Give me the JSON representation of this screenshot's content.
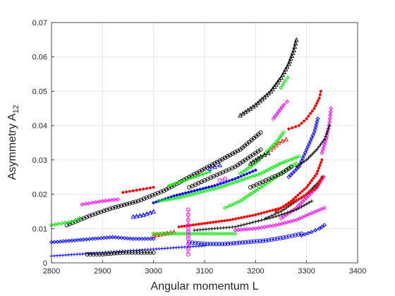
{
  "chart_data": {
    "type": "scatter",
    "title": "",
    "xlabel": "Angular momentum L",
    "ylabel": "Asymmetry A",
    "ylabel_subscript": "12",
    "xlim": [
      2800,
      3400
    ],
    "ylim": [
      0,
      0.07
    ],
    "xticks": [
      "2800",
      "2900",
      "3000",
      "3100",
      "3200",
      "3300",
      "3400"
    ],
    "yticks": [
      "0",
      "0.01",
      "0.02",
      "0.03",
      "0.04",
      "0.05",
      "0.06",
      "0.07"
    ],
    "grid": true,
    "legend": "none",
    "colors": {
      "black": "#000000",
      "red": "#ff0000",
      "green": "#00ee00",
      "blue": "#0000ff",
      "magenta": "#ff00ff"
    },
    "series": [
      {
        "color": "black",
        "marker": "triangle",
        "x": [
          3170,
          3200,
          3230,
          3250,
          3265,
          3275,
          3280
        ],
        "y": [
          0.043,
          0.046,
          0.05,
          0.054,
          0.058,
          0.062,
          0.065
        ]
      },
      {
        "color": "red",
        "marker": "dot",
        "x": [
          3265,
          3285,
          3300,
          3315,
          3325,
          3328
        ],
        "y": [
          0.039,
          0.04,
          0.042,
          0.045,
          0.048,
          0.05
        ]
      },
      {
        "color": "magenta",
        "marker": "diamond",
        "x": [
          3235,
          3245,
          3255,
          3262
        ],
        "y": [
          0.042,
          0.044,
          0.046,
          0.047
        ]
      },
      {
        "color": "green",
        "marker": "diamond",
        "x": [
          3250,
          3258,
          3263
        ],
        "y": [
          0.051,
          0.053,
          0.054
        ]
      },
      {
        "color": "blue",
        "marker": "diamond",
        "x": [
          3265,
          3285,
          3300,
          3315,
          3322
        ],
        "y": [
          0.025,
          0.028,
          0.033,
          0.038,
          0.042
        ]
      },
      {
        "color": "magenta",
        "marker": "diamond",
        "x": [
          3330,
          3340,
          3345,
          3348
        ],
        "y": [
          0.032,
          0.037,
          0.041,
          0.045
        ]
      },
      {
        "color": "black",
        "marker": "plus",
        "x": [
          3280,
          3300,
          3320,
          3335,
          3345
        ],
        "y": [
          0.028,
          0.03,
          0.033,
          0.036,
          0.04
        ]
      },
      {
        "color": "red",
        "marker": "triangle",
        "x": [
          3230,
          3245,
          3260
        ],
        "y": [
          0.033,
          0.035,
          0.036
        ]
      },
      {
        "color": "black",
        "marker": "circle",
        "x": [
          2830,
          2880,
          2920,
          2970,
          3020,
          3070,
          3120,
          3170,
          3210
        ],
        "y": [
          0.011,
          0.014,
          0.016,
          0.018,
          0.021,
          0.025,
          0.029,
          0.033,
          0.038
        ]
      },
      {
        "color": "green",
        "marker": "diamond",
        "x": [
          2800,
          2820,
          2840,
          2855
        ],
        "y": [
          0.011,
          0.0115,
          0.012,
          0.013
        ]
      },
      {
        "color": "magenta",
        "marker": "diamond",
        "x": [
          2860,
          2880,
          2900,
          2930
        ],
        "y": [
          0.017,
          0.0175,
          0.018,
          0.0185
        ]
      },
      {
        "color": "red",
        "marker": "dot",
        "x": [
          2940,
          2960,
          2980,
          3000
        ],
        "y": [
          0.0205,
          0.021,
          0.0215,
          0.022
        ]
      },
      {
        "color": "green",
        "marker": "dot",
        "x": [
          3030,
          3060,
          3090,
          3110
        ],
        "y": [
          0.0225,
          0.024,
          0.0255,
          0.0265
        ]
      },
      {
        "color": "blue",
        "marker": "triangle",
        "x": [
          3110,
          3120,
          3130
        ],
        "y": [
          0.0275,
          0.028,
          0.0285
        ]
      },
      {
        "color": "blue",
        "marker": "dot",
        "x": [
          3000,
          3040,
          3080,
          3120,
          3160,
          3200
        ],
        "y": [
          0.0175,
          0.0195,
          0.021,
          0.0225,
          0.0245,
          0.027
        ]
      },
      {
        "color": "black",
        "marker": "circle",
        "x": [
          3070,
          3100,
          3130,
          3160,
          3190,
          3210
        ],
        "y": [
          0.022,
          0.024,
          0.026,
          0.028,
          0.031,
          0.033
        ]
      },
      {
        "color": "green",
        "marker": "diamond",
        "x": [
          3170,
          3200,
          3220,
          3240,
          3255
        ],
        "y": [
          0.026,
          0.029,
          0.032,
          0.035,
          0.038
        ]
      },
      {
        "color": "black",
        "marker": "triangle",
        "x": [
          3190,
          3210,
          3225
        ],
        "y": [
          0.029,
          0.031,
          0.032
        ]
      },
      {
        "color": "green",
        "marker": "diamond",
        "x": [
          3010,
          3050,
          3090,
          3130,
          3170,
          3210,
          3250,
          3285
        ],
        "y": [
          0.018,
          0.019,
          0.0205,
          0.022,
          0.024,
          0.026,
          0.029,
          0.031
        ]
      },
      {
        "color": "magenta",
        "marker": "circle",
        "x": [
          3130,
          3140
        ],
        "y": [
          0.024,
          0.0245
        ]
      },
      {
        "color": "green",
        "marker": "diamond",
        "x": [
          3140,
          3170,
          3200,
          3230,
          3260,
          3280
        ],
        "y": [
          0.016,
          0.018,
          0.021,
          0.024,
          0.027,
          0.029
        ]
      },
      {
        "color": "black",
        "marker": "circle",
        "x": [
          3190,
          3220,
          3250,
          3270
        ],
        "y": [
          0.022,
          0.024,
          0.026,
          0.028
        ]
      },
      {
        "color": "red",
        "marker": "dot",
        "x": [
          3240,
          3270,
          3300,
          3320,
          3330
        ],
        "y": [
          0.015,
          0.018,
          0.022,
          0.026,
          0.03
        ]
      },
      {
        "color": "magenta",
        "marker": "diamond",
        "x": [
          3250,
          3280,
          3300,
          3320,
          3333
        ],
        "y": [
          0.013,
          0.016,
          0.019,
          0.022,
          0.025
        ]
      },
      {
        "color": "black",
        "marker": "plus",
        "x": [
          3220,
          3250,
          3280,
          3300,
          3320,
          3332
        ],
        "y": [
          0.013,
          0.015,
          0.018,
          0.02,
          0.023,
          0.025
        ]
      },
      {
        "color": "red",
        "marker": "dot",
        "x": [
          3050,
          3100,
          3150,
          3200,
          3250,
          3290,
          3320,
          3330
        ],
        "y": [
          0.0105,
          0.0115,
          0.0125,
          0.014,
          0.016,
          0.019,
          0.022,
          0.025
        ]
      },
      {
        "color": "blue",
        "marker": "triangle",
        "x": [
          2960,
          2980,
          3000
        ],
        "y": [
          0.0135,
          0.014,
          0.015
        ]
      },
      {
        "color": "black",
        "marker": "plus",
        "x": [
          3080,
          3120,
          3160,
          3200,
          3240,
          3280,
          3310
        ],
        "y": [
          0.0095,
          0.01,
          0.0105,
          0.012,
          0.0135,
          0.0155,
          0.018
        ]
      },
      {
        "color": "red",
        "marker": "triangle",
        "x": [
          3000,
          3020,
          3040
        ],
        "y": [
          0.008,
          0.0085,
          0.009
        ]
      },
      {
        "color": "green",
        "marker": "diamond",
        "x": [
          3000,
          3040,
          3080,
          3120,
          3160
        ],
        "y": [
          0.0085,
          0.0085,
          0.0085,
          0.0085,
          0.0085
        ]
      },
      {
        "color": "magenta",
        "marker": "diamond",
        "x": [
          3160,
          3200,
          3240,
          3280,
          3310,
          3335
        ],
        "y": [
          0.0095,
          0.01,
          0.011,
          0.0125,
          0.0145,
          0.016
        ]
      },
      {
        "color": "blue",
        "marker": "diamond",
        "x": [
          2800,
          2840,
          2880,
          2920,
          2960,
          3000
        ],
        "y": [
          0.006,
          0.0065,
          0.007,
          0.0075,
          0.007,
          0.007
        ]
      },
      {
        "color": "blue",
        "marker": "circle",
        "x": [
          3070,
          3100,
          3140,
          3180,
          3220,
          3260,
          3290
        ],
        "y": [
          0.006,
          0.0055,
          0.0055,
          0.006,
          0.0065,
          0.0075,
          0.0085
        ]
      },
      {
        "color": "blue",
        "marker": "diamond",
        "x": [
          3290,
          3310,
          3325,
          3335
        ],
        "y": [
          0.008,
          0.009,
          0.01,
          0.011
        ]
      },
      {
        "color": "blue",
        "marker": "plus",
        "x": [
          2800,
          2850,
          2900,
          2950,
          3000,
          3050,
          3100
        ],
        "y": [
          0.002,
          0.0025,
          0.003,
          0.0035,
          0.004,
          0.0045,
          0.005
        ]
      },
      {
        "color": "black",
        "marker": "circle",
        "x": [
          2870,
          2900,
          2940,
          2970,
          3000
        ],
        "y": [
          0.0025,
          0.0025,
          0.003,
          0.003,
          0.003
        ]
      },
      {
        "color": "magenta",
        "marker": "circle",
        "x": [
          3068,
          3068,
          3068,
          3068,
          3068,
          3068,
          3068,
          3068,
          3068,
          3068,
          3068
        ],
        "y": [
          0.0025,
          0.004,
          0.0055,
          0.007,
          0.008,
          0.009,
          0.01,
          0.011,
          0.0125,
          0.014,
          0.0155
        ]
      }
    ]
  }
}
